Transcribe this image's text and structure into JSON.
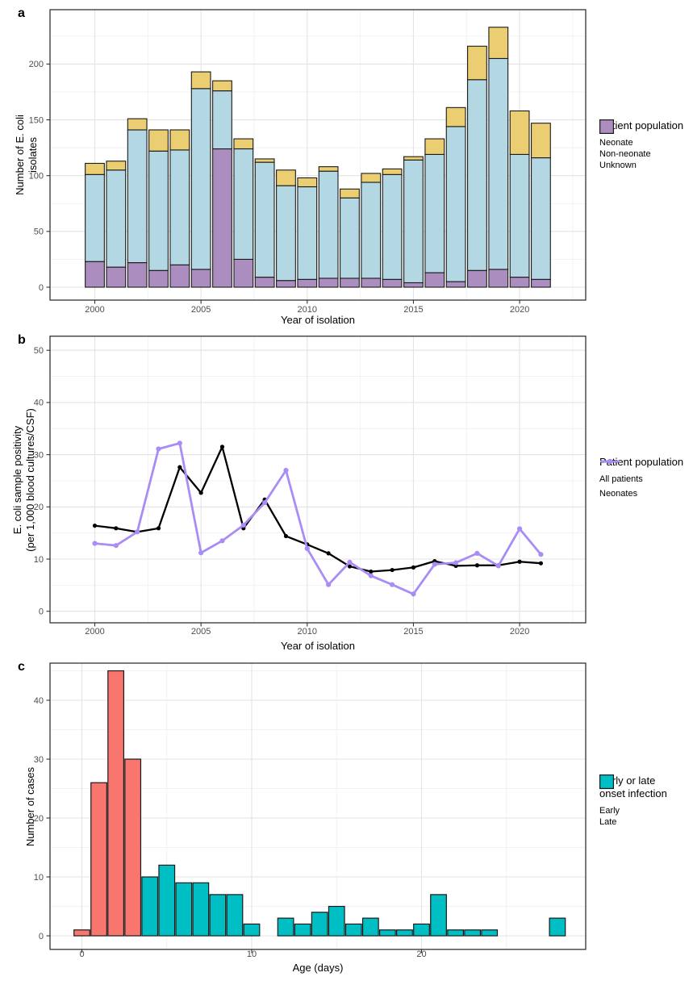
{
  "figure": {
    "panels": [
      {
        "letter": "a",
        "xlabel": "Year of isolation",
        "ylabel_lines": [
          "Number of E. coli",
          "isolates"
        ],
        "legend": {
          "title": "Patient population",
          "entries": [
            {
              "label": "Neonate",
              "color": "#EBCE71"
            },
            {
              "label": "Non-neonate",
              "color": "#B3D8E4"
            },
            {
              "label": "Unknown",
              "color": "#AB8DC0"
            }
          ]
        }
      },
      {
        "letter": "b",
        "xlabel": "Year of isolation",
        "ylabel_lines": [
          "E. coli sample positivity",
          "(per 1,000 blood cultures/CSF)"
        ],
        "legend": {
          "title": "Patient population",
          "entries": [
            {
              "label": "All patients",
              "color": "#000000"
            },
            {
              "label": "Neonates",
              "color": "#A98CF5"
            }
          ]
        }
      },
      {
        "letter": "c",
        "xlabel": "Age (days)",
        "ylabel_lines": [
          "Number of cases"
        ],
        "legend": {
          "title_lines": [
            "Early or late",
            "onset infection"
          ],
          "entries": [
            {
              "label": "Early",
              "color": "#F8766D"
            },
            {
              "label": "Late",
              "color": "#00BFC4"
            }
          ]
        }
      }
    ]
  },
  "chart_data": [
    {
      "id": "a",
      "type": "bar",
      "stacked": true,
      "x": [
        2000,
        2001,
        2002,
        2003,
        2004,
        2005,
        2006,
        2007,
        2008,
        2009,
        2010,
        2011,
        2012,
        2013,
        2014,
        2015,
        2016,
        2017,
        2018,
        2019,
        2020,
        2021
      ],
      "series": [
        {
          "name": "Unknown",
          "color": "#AB8DC0",
          "values": [
            23,
            18,
            22,
            15,
            20,
            16,
            124,
            25,
            9,
            6,
            7,
            8,
            8,
            8,
            7,
            4,
            13,
            5,
            15,
            16,
            9,
            7
          ]
        },
        {
          "name": "Non-neonate",
          "color": "#B3D8E4",
          "values": [
            78,
            87,
            119,
            107,
            103,
            162,
            52,
            99,
            103,
            85,
            83,
            96,
            72,
            86,
            94,
            110,
            106,
            139,
            171,
            189,
            110,
            109
          ]
        },
        {
          "name": "Neonate",
          "color": "#EBCE71",
          "values": [
            10,
            8,
            10,
            19,
            18,
            15,
            9,
            9,
            3,
            14,
            8,
            4,
            8,
            8,
            5,
            3,
            14,
            17,
            30,
            28,
            39,
            31
          ]
        }
      ],
      "xlabel": "Year of isolation",
      "ylabel": "Number of E. coli isolates",
      "ylim": [
        0,
        248
      ],
      "yticks": [
        0,
        50,
        100,
        150,
        200
      ],
      "yminor": [
        25,
        75,
        125,
        175,
        225
      ],
      "xticks": [
        2000,
        2005,
        2010,
        2015,
        2020
      ],
      "xminor": [
        2002.5,
        2007.5,
        2012.5,
        2017.5,
        2022.5
      ],
      "legend_title": "Patient population",
      "legend_position": "right",
      "grid": true
    },
    {
      "id": "b",
      "type": "line",
      "x": [
        2000,
        2001,
        2002,
        2003,
        2004,
        2005,
        2006,
        2007,
        2008,
        2009,
        2010,
        2011,
        2012,
        2013,
        2014,
        2015,
        2016,
        2017,
        2018,
        2019,
        2020,
        2021
      ],
      "series": [
        {
          "name": "All patients",
          "color": "#000000",
          "values": [
            16.4,
            15.9,
            15.2,
            15.9,
            27.6,
            22.7,
            31.5,
            15.9,
            21.4,
            14.4,
            12.8,
            11.1,
            8.6,
            7.6,
            7.9,
            8.4,
            9.6,
            8.7,
            8.8,
            8.8,
            9.5,
            9.2
          ]
        },
        {
          "name": "Neonates",
          "color": "#A98CF5",
          "values": [
            13.0,
            12.6,
            15.2,
            31.1,
            32.2,
            11.2,
            13.5,
            16.5,
            20.8,
            27.0,
            12.0,
            5.1,
            9.4,
            6.8,
            5.1,
            3.3,
            9.0,
            9.3,
            11.1,
            8.7,
            15.8,
            10.9
          ]
        }
      ],
      "xlabel": "Year of isolation",
      "ylabel": "E. coli sample positivity (per 1,000 blood cultures/CSF)",
      "ylim": [
        0,
        52
      ],
      "yticks": [
        0,
        10,
        20,
        30,
        40,
        50
      ],
      "yminor": [
        5,
        15,
        25,
        35,
        45
      ],
      "xticks": [
        2000,
        2005,
        2010,
        2015,
        2020
      ],
      "xminor": [
        2002.5,
        2007.5,
        2012.5,
        2017.5,
        2022.5
      ],
      "legend_title": "Patient population",
      "legend_position": "right",
      "grid": true
    },
    {
      "id": "c",
      "type": "bar",
      "stacked": false,
      "x": [
        0,
        1,
        2,
        3,
        4,
        5,
        6,
        7,
        8,
        9,
        10,
        11,
        12,
        13,
        14,
        15,
        16,
        17,
        18,
        19,
        20,
        21,
        22,
        23,
        24,
        25,
        26,
        27,
        28
      ],
      "values": [
        1,
        26,
        45,
        30,
        10,
        12,
        9,
        9,
        7,
        7,
        2,
        0,
        3,
        2,
        4,
        5,
        2,
        3,
        1,
        1,
        2,
        7,
        1,
        1,
        1,
        0,
        0,
        0,
        3
      ],
      "groups": [
        "Early",
        "Early",
        "Early",
        "Early",
        "Late",
        "Late",
        "Late",
        "Late",
        "Late",
        "Late",
        "Late",
        "Late",
        "Late",
        "Late",
        "Late",
        "Late",
        "Late",
        "Late",
        "Late",
        "Late",
        "Late",
        "Late",
        "Late",
        "Late",
        "Late",
        "Late",
        "Late",
        "Late",
        "Late"
      ],
      "group_colors": {
        "Early": "#F8766D",
        "Late": "#00BFC4"
      },
      "xlabel": "Age (days)",
      "ylabel": "Number of cases",
      "ylim": [
        0,
        46
      ],
      "yticks": [
        0,
        10,
        20,
        30,
        40
      ],
      "yminor": [
        5,
        15,
        25,
        35,
        45
      ],
      "xticks": [
        0,
        10,
        20
      ],
      "xminor": [
        5,
        15,
        25
      ],
      "legend_title": "Early or late onset infection",
      "legend_position": "right",
      "grid": true
    }
  ]
}
